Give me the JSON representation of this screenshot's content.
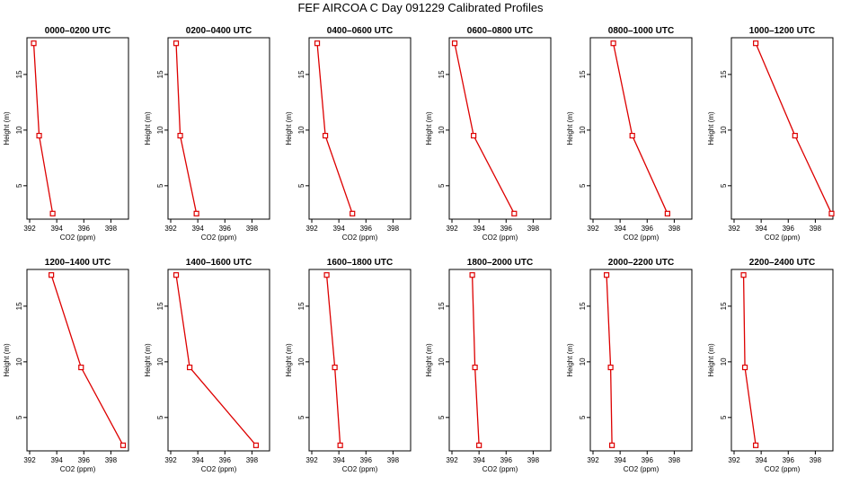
{
  "title": "FEF AIRCOA C  Day 091229  Calibrated Profiles",
  "colors": {
    "series": "#dd0000",
    "axis": "#000000"
  },
  "chart_data": {
    "type": "line",
    "xlabel": "CO2 (ppm)",
    "ylabel": "Height (m)",
    "xlim": [
      391.8,
      399.3
    ],
    "ylim": [
      2,
      18.3
    ],
    "xticks": [
      392,
      394,
      396,
      398
    ],
    "yticks": [
      5,
      10,
      15
    ],
    "heights": [
      2.5,
      9.5,
      17.8
    ],
    "panels": [
      {
        "title": "0000–0200 UTC",
        "co2": [
          393.7,
          392.7,
          392.3
        ]
      },
      {
        "title": "0200–0400 UTC",
        "co2": [
          393.9,
          392.7,
          392.4
        ]
      },
      {
        "title": "0400–0600 UTC",
        "co2": [
          395.0,
          393.0,
          392.4
        ]
      },
      {
        "title": "0600–0800 UTC",
        "co2": [
          396.6,
          393.6,
          392.2
        ]
      },
      {
        "title": "0800–1000 UTC",
        "co2": [
          397.5,
          394.9,
          393.5
        ]
      },
      {
        "title": "1000–1200 UTC",
        "co2": [
          399.2,
          396.5,
          393.6
        ]
      },
      {
        "title": "1200–1400 UTC",
        "co2": [
          398.9,
          395.8,
          393.6
        ]
      },
      {
        "title": "1400–1600 UTC",
        "co2": [
          398.3,
          393.4,
          392.4
        ]
      },
      {
        "title": "1600–1800 UTC",
        "co2": [
          394.1,
          393.7,
          393.1
        ]
      },
      {
        "title": "1800–2000 UTC",
        "co2": [
          394.0,
          393.7,
          393.5
        ]
      },
      {
        "title": "2000–2200 UTC",
        "co2": [
          393.4,
          393.3,
          393.0
        ]
      },
      {
        "title": "2200–2400 UTC",
        "co2": [
          393.6,
          392.8,
          392.7
        ]
      }
    ]
  }
}
